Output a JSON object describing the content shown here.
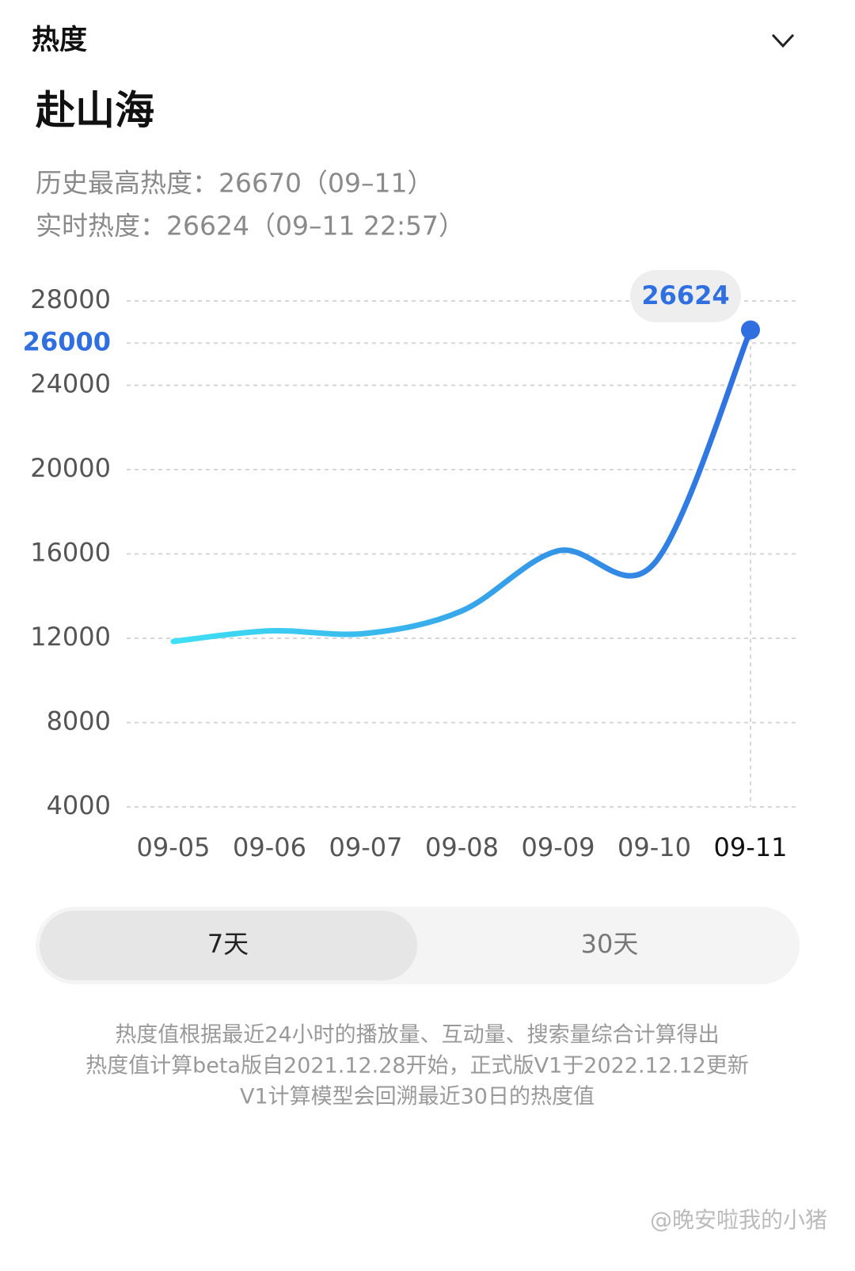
{
  "header": {
    "section": "热度",
    "title": "赴山海",
    "stat_peak": "历史最高热度：26670（09–11）",
    "stat_live": "实时热度：26624（09–11 22:57）"
  },
  "chart_data": {
    "type": "line",
    "categories": [
      "09-05",
      "09-06",
      "09-07",
      "09-08",
      "09-09",
      "09-10",
      "09-11"
    ],
    "series": [
      {
        "name": "热度",
        "color": "#2f6fe0",
        "color_start": "#3fe0f4",
        "values": [
          11850,
          12350,
          12230,
          13300,
          16150,
          15550,
          26624
        ]
      }
    ],
    "ylim": [
      4000,
      28000
    ],
    "yticks": [
      4000,
      8000,
      12000,
      16000,
      20000,
      24000,
      26000,
      28000
    ],
    "highlight_ytick": 26000,
    "grid": true
  },
  "toggle": {
    "options": [
      "7天",
      "30天"
    ],
    "selected": 0
  },
  "footnote": [
    "热度值根据最近24小时的播放量、互动量、搜索量综合计算得出",
    "热度值计算beta版自2021.12.28开始，正式版V1于2022.12.12更新",
    "V1计算模型会回溯最近30日的热度值"
  ],
  "watermark": "@晚安啦我的小猪"
}
